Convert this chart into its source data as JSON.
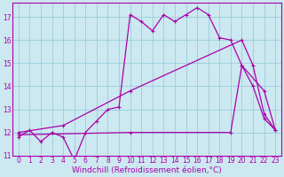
{
  "xlabel": "Windchill (Refroidissement éolien,°C)",
  "background_color": "#cce8f0",
  "grid_color": "#99ccdd",
  "line_color": "#aa00aa",
  "xlim_min": -0.5,
  "xlim_max": 23.5,
  "ylim_min": 11.0,
  "ylim_max": 17.6,
  "yticks": [
    11,
    12,
    13,
    14,
    15,
    16,
    17
  ],
  "xticks": [
    0,
    1,
    2,
    3,
    4,
    5,
    6,
    7,
    8,
    9,
    10,
    11,
    12,
    13,
    14,
    15,
    16,
    17,
    18,
    19,
    20,
    21,
    22,
    23
  ],
  "series1_x": [
    0,
    1,
    2,
    3,
    4,
    5,
    6,
    7,
    8,
    9,
    10,
    11,
    12,
    13,
    14,
    15,
    16,
    17,
    18,
    19,
    20,
    21,
    22,
    23
  ],
  "series1_y": [
    11.8,
    12.1,
    11.6,
    12.0,
    11.8,
    10.8,
    12.0,
    12.5,
    13.0,
    13.1,
    17.1,
    16.8,
    16.4,
    17.1,
    16.8,
    17.1,
    17.4,
    17.1,
    16.1,
    16.0,
    14.9,
    14.0,
    12.6,
    12.1
  ],
  "series2_x": [
    0,
    4,
    10,
    20,
    21,
    22,
    23
  ],
  "series2_y": [
    12.0,
    12.3,
    13.8,
    16.0,
    14.9,
    12.8,
    12.1
  ],
  "series3_x": [
    0,
    10,
    19,
    20,
    22,
    23
  ],
  "series3_y": [
    11.9,
    12.0,
    12.0,
    14.9,
    13.8,
    12.1
  ],
  "linewidth": 0.9,
  "markersize": 3,
  "tick_fontsize": 5.5,
  "xlabel_fontsize": 6.5
}
